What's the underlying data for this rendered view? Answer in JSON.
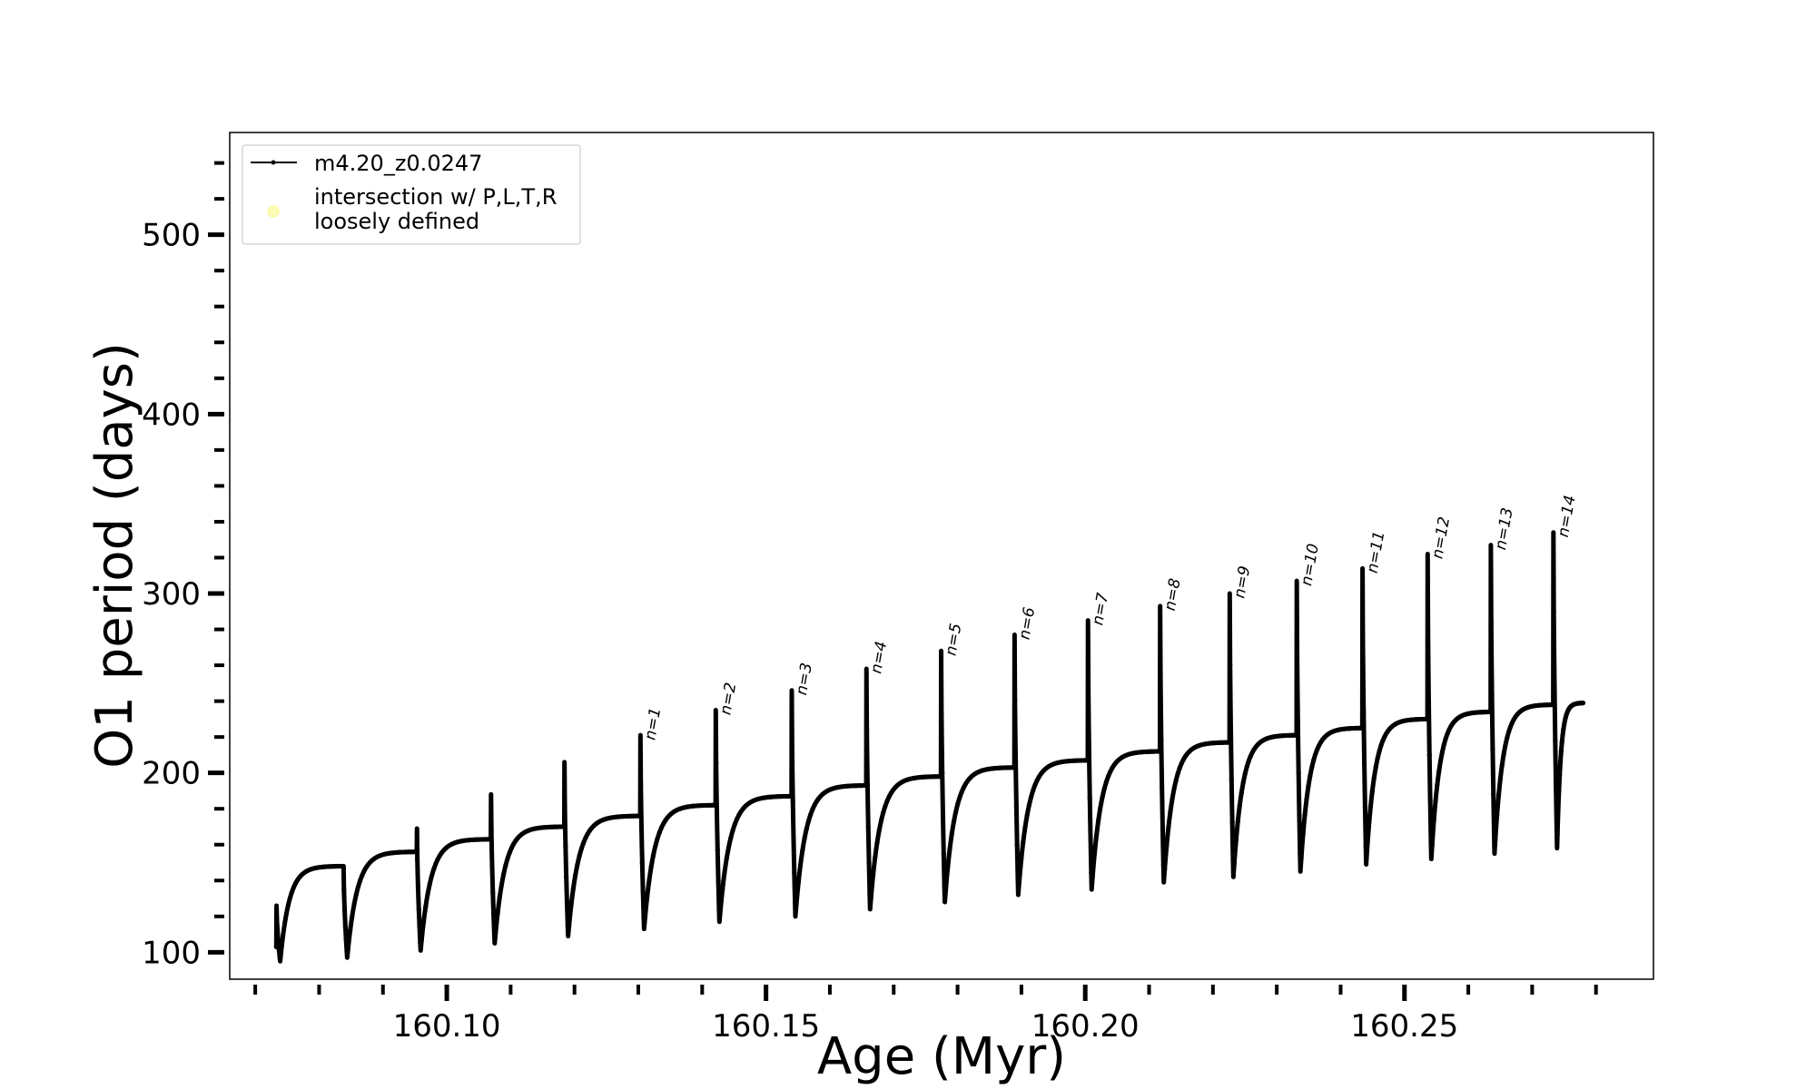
{
  "chart_data": {
    "type": "line",
    "title": "",
    "xlabel": "Age (Myr)",
    "ylabel": "O1 period (days)",
    "xlim": [
      160.066,
      160.289
    ],
    "ylim": [
      85,
      557
    ],
    "x_ticks_major": [
      160.1,
      160.15,
      160.2,
      160.25
    ],
    "x_tick_labels": [
      "160.10",
      "160.15",
      "160.20",
      "160.25"
    ],
    "x_ticks_minor_step": 0.01,
    "y_ticks_major": [
      100,
      200,
      300,
      400,
      500
    ],
    "y_tick_labels": [
      "100",
      "200",
      "300",
      "400",
      "500"
    ],
    "y_ticks_minor_step": 20,
    "grid": false,
    "legend": {
      "placement": "top-left",
      "entries": [
        {
          "label": "m4.20_z0.0247",
          "marker": "line-dot",
          "color": "#000000"
        },
        {
          "label_lines": [
            "intersection w/ P,L,T,R",
            "loosely defined"
          ],
          "marker": "circle",
          "color": "#fbfbb4"
        }
      ]
    },
    "series": [
      {
        "name": "m4.20_z0.0247",
        "color": "#000000",
        "cycles": [
          {
            "x_start": 160.0733,
            "x_end": 160.0838,
            "peak": 126,
            "min": 95,
            "plateau": 148
          },
          {
            "x_start": 160.0838,
            "x_end": 160.0953,
            "peak": 148,
            "min": 97,
            "plateau": 156
          },
          {
            "x_start": 160.0953,
            "x_end": 160.1069,
            "peak": 169,
            "min": 101,
            "plateau": 163
          },
          {
            "x_start": 160.1069,
            "x_end": 160.1184,
            "peak": 188,
            "min": 105,
            "plateau": 170
          },
          {
            "x_start": 160.1184,
            "x_end": 160.1303,
            "peak": 206,
            "min": 109,
            "plateau": 176
          },
          {
            "x_start": 160.1303,
            "x_end": 160.1421,
            "peak": 221,
            "min": 113,
            "plateau": 182
          },
          {
            "x_start": 160.1421,
            "x_end": 160.154,
            "peak": 235,
            "min": 117,
            "plateau": 187
          },
          {
            "x_start": 160.154,
            "x_end": 160.1657,
            "peak": 246,
            "min": 120,
            "plateau": 193
          },
          {
            "x_start": 160.1657,
            "x_end": 160.1774,
            "peak": 258,
            "min": 124,
            "plateau": 198
          },
          {
            "x_start": 160.1774,
            "x_end": 160.1889,
            "peak": 268,
            "min": 128,
            "plateau": 203
          },
          {
            "x_start": 160.1889,
            "x_end": 160.2004,
            "peak": 277,
            "min": 132,
            "plateau": 207
          },
          {
            "x_start": 160.2004,
            "x_end": 160.2117,
            "peak": 285,
            "min": 135,
            "plateau": 212
          },
          {
            "x_start": 160.2117,
            "x_end": 160.2226,
            "peak": 293,
            "min": 139,
            "plateau": 217
          },
          {
            "x_start": 160.2226,
            "x_end": 160.2331,
            "peak": 300,
            "min": 142,
            "plateau": 221
          },
          {
            "x_start": 160.2331,
            "x_end": 160.2434,
            "peak": 307,
            "min": 145,
            "plateau": 225
          },
          {
            "x_start": 160.2434,
            "x_end": 160.2536,
            "peak": 314,
            "min": 149,
            "plateau": 230
          },
          {
            "x_start": 160.2536,
            "x_end": 160.2635,
            "peak": 322,
            "min": 152,
            "plateau": 234
          },
          {
            "x_start": 160.2635,
            "x_end": 160.2733,
            "peak": 327,
            "min": 155,
            "plateau": 238
          },
          {
            "x_start": 160.2733,
            "x_end": 160.278,
            "peak": 334,
            "min": 158,
            "plateau": 239
          }
        ]
      }
    ],
    "cycle_labels": [
      {
        "text": "n=1",
        "x": 160.1303,
        "y": 221
      },
      {
        "text": "n=2",
        "x": 160.1421,
        "y": 235
      },
      {
        "text": "n=3",
        "x": 160.154,
        "y": 246
      },
      {
        "text": "n=4",
        "x": 160.1657,
        "y": 258
      },
      {
        "text": "n=5",
        "x": 160.1774,
        "y": 268
      },
      {
        "text": "n=6",
        "x": 160.1889,
        "y": 277
      },
      {
        "text": "n=7",
        "x": 160.2004,
        "y": 285
      },
      {
        "text": "n=8",
        "x": 160.2117,
        "y": 293
      },
      {
        "text": "n=9",
        "x": 160.2226,
        "y": 300
      },
      {
        "text": "n=10",
        "x": 160.2331,
        "y": 307
      },
      {
        "text": "n=11",
        "x": 160.2434,
        "y": 314
      },
      {
        "text": "n=12",
        "x": 160.2536,
        "y": 322
      },
      {
        "text": "n=13",
        "x": 160.2635,
        "y": 327
      },
      {
        "text": "n=14",
        "x": 160.2733,
        "y": 334
      }
    ]
  }
}
